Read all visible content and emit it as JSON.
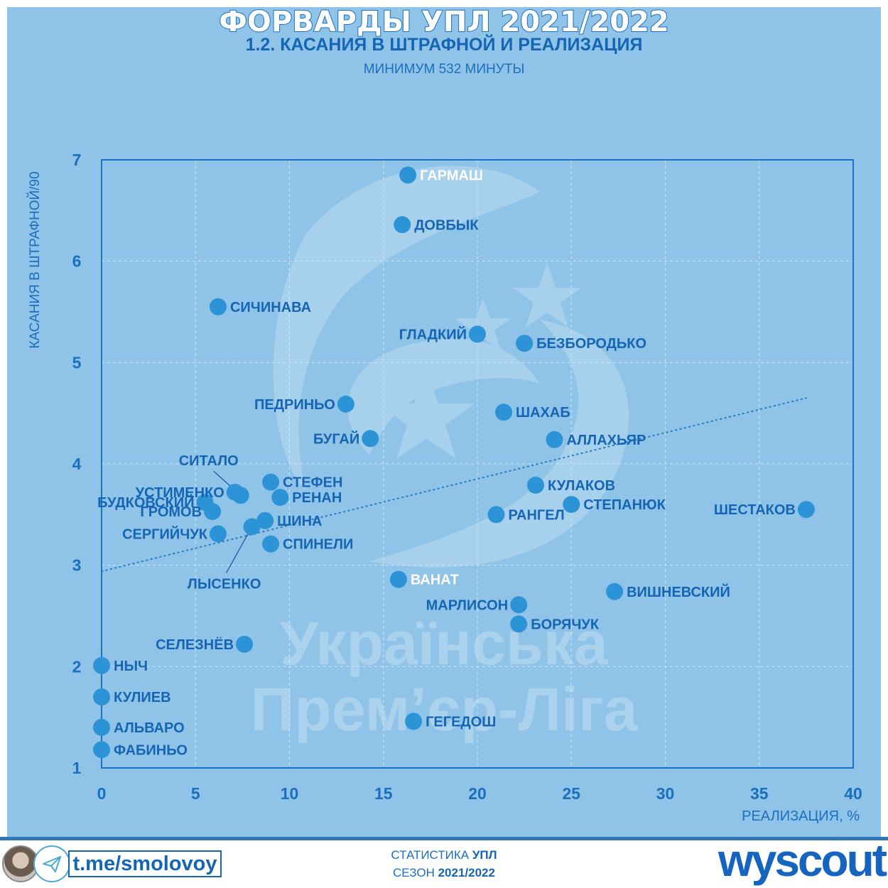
{
  "header": {
    "title": "ФОРВАРДЫ УПЛ 2021/2022",
    "subtitle": "1.2. КАСАНИЯ В ШТРАФНОЙ И РЕАЛИЗАЦИЯ",
    "note": "МИНИМУМ 532 МИНУТЫ"
  },
  "watermark": {
    "line1": "Українська",
    "line2": "Прем’єр-Ліга"
  },
  "colors": {
    "panel": "#8fc3e7",
    "point": "#2b93d6",
    "label": "#1565b5",
    "highlight_label": "#ffffff"
  },
  "chart_data": {
    "type": "scatter",
    "title": "1.2. КАСАНИЯ В ШТРАФНОЙ И РЕАЛИЗАЦИЯ",
    "xlabel": "РЕАЛИЗАЦИЯ, %",
    "ylabel": "КАСАНИЯ В ШТРАФНОЙ/90",
    "xlim": [
      0,
      40
    ],
    "ylim": [
      1,
      7
    ],
    "xticks": [
      "0",
      "5",
      "10",
      "15",
      "20",
      "25",
      "30",
      "35",
      "40"
    ],
    "yticks": [
      "1",
      "2",
      "3",
      "4",
      "5",
      "6",
      "7"
    ],
    "grid": true,
    "trendline": {
      "x": [
        0,
        37.5
      ],
      "y": [
        2.94,
        4.65
      ],
      "style": "dotted"
    },
    "points": [
      {
        "name": "ГАРМАШ",
        "x": 16.3,
        "y": 6.85,
        "label_side": "right",
        "highlight": true
      },
      {
        "name": "ДОВБЫК",
        "x": 16.0,
        "y": 6.36,
        "label_side": "right"
      },
      {
        "name": "СИЧИНАВА",
        "x": 6.2,
        "y": 5.55,
        "label_side": "right"
      },
      {
        "name": "ГЛАДКИЙ",
        "x": 20.0,
        "y": 5.28,
        "label_side": "left"
      },
      {
        "name": "БЕЗБОРОДЬКО",
        "x": 22.5,
        "y": 5.19,
        "label_side": "right"
      },
      {
        "name": "ПЕДРИНЬО",
        "x": 13.0,
        "y": 4.59,
        "label_side": "left"
      },
      {
        "name": "ШАХАБ",
        "x": 21.4,
        "y": 4.51,
        "label_side": "right"
      },
      {
        "name": "БУГАЙ",
        "x": 14.3,
        "y": 4.25,
        "label_side": "left"
      },
      {
        "name": "АЛЛАХЬЯР",
        "x": 24.1,
        "y": 4.24,
        "label_side": "right"
      },
      {
        "name": "СИТАЛО",
        "x": 7.4,
        "y": 3.69,
        "label_side": "callout-top"
      },
      {
        "name": "УСТИМЕНКО",
        "x": 7.1,
        "y": 3.72,
        "label_side": "left"
      },
      {
        "name": "СТЕФЕН",
        "x": 9.0,
        "y": 3.82,
        "label_side": "right"
      },
      {
        "name": "РЕНАН",
        "x": 9.5,
        "y": 3.67,
        "label_side": "right"
      },
      {
        "name": "КУЛАКОВ",
        "x": 23.1,
        "y": 3.79,
        "label_side": "right"
      },
      {
        "name": "БУДКОВСКИЙ",
        "x": 5.5,
        "y": 3.62,
        "label_side": "left"
      },
      {
        "name": "ГРОМОВ",
        "x": 5.9,
        "y": 3.53,
        "label_side": "left"
      },
      {
        "name": "СТЕПАНЮК",
        "x": 25.0,
        "y": 3.6,
        "label_side": "right"
      },
      {
        "name": "ШЕСТАКОВ",
        "x": 37.5,
        "y": 3.55,
        "label_side": "left"
      },
      {
        "name": "РАНГЕЛ",
        "x": 21.0,
        "y": 3.5,
        "label_side": "right"
      },
      {
        "name": "ШИНА",
        "x": 8.7,
        "y": 3.44,
        "label_side": "right"
      },
      {
        "name": "ЛЫСЕНКО",
        "x": 8.0,
        "y": 3.38,
        "label_side": "callout-bottom"
      },
      {
        "name": "СЕРГИЙЧУК",
        "x": 6.2,
        "y": 3.31,
        "label_side": "left"
      },
      {
        "name": "СПИНЕЛИ",
        "x": 9.0,
        "y": 3.21,
        "label_side": "right"
      },
      {
        "name": "ВАНАТ",
        "x": 15.8,
        "y": 2.86,
        "label_side": "right",
        "highlight": true
      },
      {
        "name": "ВИШНЕВСКИЙ",
        "x": 27.3,
        "y": 2.74,
        "label_side": "right"
      },
      {
        "name": "МАРЛИСОН",
        "x": 22.2,
        "y": 2.61,
        "label_side": "left"
      },
      {
        "name": "БОРЯЧУК",
        "x": 22.2,
        "y": 2.42,
        "label_side": "right"
      },
      {
        "name": "СЕЛЕЗНЁВ",
        "x": 7.6,
        "y": 2.22,
        "label_side": "left"
      },
      {
        "name": "НЫЧ",
        "x": 0,
        "y": 2.01,
        "label_side": "right"
      },
      {
        "name": "КУЛИЕВ",
        "x": 0,
        "y": 1.7,
        "label_side": "right"
      },
      {
        "name": "ГЕГЕДОШ",
        "x": 16.6,
        "y": 1.46,
        "label_side": "right"
      },
      {
        "name": "АЛЬВАРО",
        "x": 0,
        "y": 1.4,
        "label_side": "right"
      },
      {
        "name": "ФАБИНЬО",
        "x": 0,
        "y": 1.18,
        "label_side": "right"
      }
    ]
  },
  "footer": {
    "telegram_link": "t.me/smolovoy",
    "stat_prefix": "СТАТИСТИКА",
    "stat_league": "УПЛ",
    "season_prefix": "СЕЗОН",
    "season": "2021/2022",
    "brand": "wyscout"
  }
}
